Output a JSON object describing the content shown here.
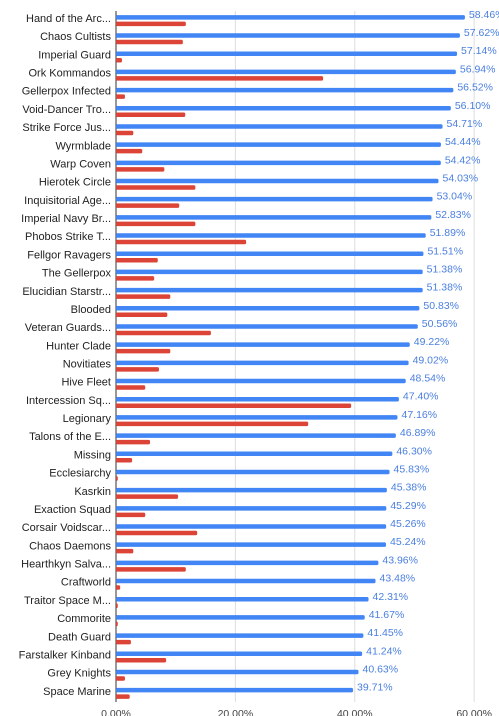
{
  "chart_data": {
    "type": "bar",
    "orientation": "horizontal",
    "categories": [
      "Hand of the Arc...",
      "Chaos Cultists",
      "Imperial Guard",
      "Ork Kommandos",
      "Gellerpox Infected",
      "Void-Dancer Tro...",
      "Strike Force Jus...",
      "Wyrmblade",
      "Warp Coven",
      "Hierotek Circle",
      "Inquisitorial Age...",
      "Imperial Navy Br...",
      "Phobos Strike T...",
      "Fellgor Ravagers",
      "The Gellerpox",
      "Elucidian Starstr...",
      "Blooded",
      "Veteran Guards...",
      "Hunter Clade",
      "Novitiates",
      "Hive Fleet",
      "Intercession Sq...",
      "Legionary",
      "Talons of the E...",
      "Missing",
      "Ecclesiarchy",
      "Kasrkin",
      "Exaction Squad",
      "Corsair Voidscar...",
      "Chaos Daemons",
      "Hearthkyn Salva...",
      "Craftworld",
      "Traitor Space M...",
      "Commorite",
      "Death Guard",
      "Farstalker Kinband",
      "Grey Knights",
      "Space Marine"
    ],
    "series": [
      {
        "color": "#4285f4",
        "values": [
          58.46,
          57.62,
          57.14,
          56.94,
          56.52,
          56.1,
          54.71,
          54.44,
          54.42,
          54.03,
          53.04,
          52.83,
          51.89,
          51.51,
          51.38,
          51.38,
          50.83,
          50.56,
          49.22,
          49.02,
          48.54,
          47.4,
          47.16,
          46.89,
          46.3,
          45.83,
          45.38,
          45.29,
          45.26,
          45.24,
          43.96,
          43.48,
          42.31,
          41.67,
          41.45,
          41.24,
          40.63,
          39.71
        ],
        "value_labels": [
          "58.46%",
          "57.62%",
          "57.14%",
          "56.94%",
          "56.52%",
          "56.10%",
          "54.71%",
          "54.44%",
          "54.42%",
          "54.03%",
          "53.04%",
          "52.83%",
          "51.89%",
          "51.51%",
          "51.38%",
          "51.38%",
          "50.83%",
          "50.56%",
          "49.22%",
          "49.02%",
          "48.54%",
          "47.40%",
          "47.16%",
          "46.89%",
          "46.30%",
          "45.83%",
          "45.38%",
          "45.29%",
          "45.26%",
          "45.24%",
          "43.96%",
          "43.48%",
          "42.31%",
          "41.67%",
          "41.45%",
          "41.24%",
          "40.63%",
          "39.71%"
        ]
      },
      {
        "color": "#db4437",
        "values": [
          11.7,
          11.2,
          1.0,
          34.7,
          1.5,
          11.6,
          2.9,
          4.4,
          8.1,
          13.3,
          10.6,
          13.3,
          21.8,
          7.0,
          6.4,
          9.1,
          8.6,
          15.9,
          9.1,
          7.2,
          4.9,
          39.4,
          32.2,
          5.7,
          2.7,
          0.3,
          10.4,
          4.9,
          13.6,
          2.9,
          11.7,
          0.7,
          0.3,
          0.3,
          2.5,
          8.4,
          1.5,
          2.3
        ]
      }
    ],
    "xlim": [
      0,
      64
    ],
    "xticks": [
      {
        "value": 0,
        "label": "0.00%"
      },
      {
        "value": 20,
        "label": "20.00%"
      },
      {
        "value": 40,
        "label": "40.00%"
      },
      {
        "value": 60,
        "label": "60.00%"
      }
    ],
    "grid": true
  }
}
